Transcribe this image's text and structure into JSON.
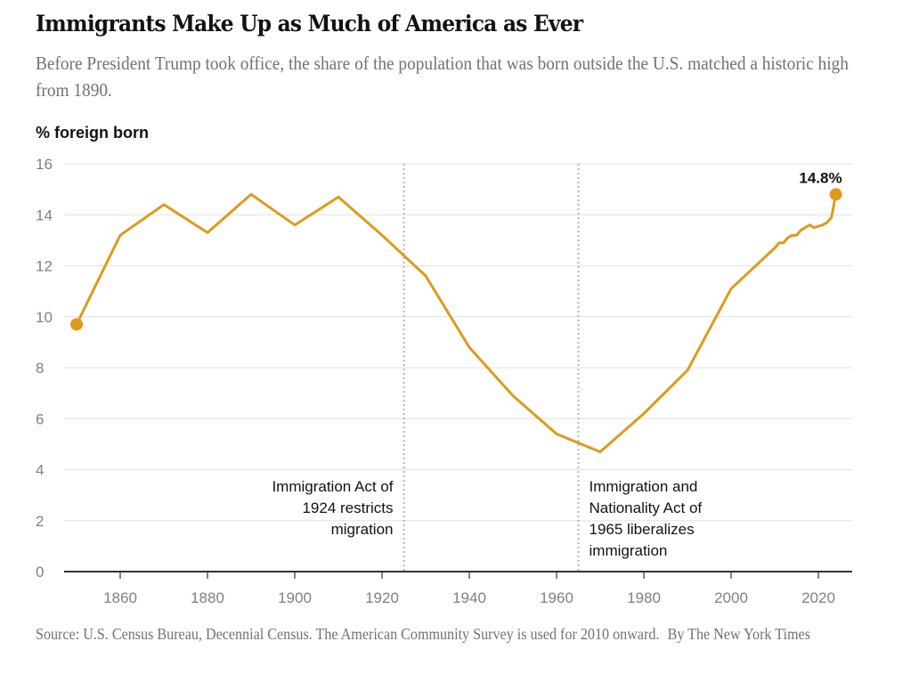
{
  "header": {
    "title": "Immigrants Make Up as Much of America as Ever",
    "subtitle": "Before President Trump took office, the share of the population that was born outside the U.S. matched a historic high from 1890."
  },
  "footer": {
    "source": "Source: U.S. Census Bureau, Decennial Census. The American Community Survey is used for 2010 onward.",
    "byline": "By The New York Times"
  },
  "colors": {
    "line": "#df9a1b",
    "grid": "#e6e6e6",
    "axis": "#333333",
    "annotation_line": "#b5b5b5"
  },
  "chart_data": {
    "type": "line",
    "title": "Immigrants Make Up as Much of America as Ever",
    "ylabel": "% foreign born",
    "xlabel": "",
    "ylim": [
      0,
      16
    ],
    "xlim": [
      1848,
      2027
    ],
    "yticks": [
      0,
      2,
      4,
      6,
      8,
      10,
      12,
      14,
      16
    ],
    "xticks": [
      1860,
      1880,
      1900,
      1920,
      1940,
      1960,
      1980,
      2000,
      2020
    ],
    "grid": true,
    "series": [
      {
        "name": "% foreign born",
        "x": [
          1850,
          1860,
          1870,
          1880,
          1890,
          1900,
          1910,
          1920,
          1930,
          1940,
          1950,
          1960,
          1970,
          1980,
          1990,
          2000,
          2010,
          2011,
          2012,
          2013,
          2014,
          2015,
          2016,
          2017,
          2018,
          2019,
          2021,
          2022,
          2023,
          2024
        ],
        "values": [
          9.7,
          13.2,
          14.4,
          13.3,
          14.8,
          13.6,
          14.7,
          13.2,
          11.6,
          8.8,
          6.9,
          5.4,
          4.7,
          6.2,
          7.9,
          11.1,
          12.7,
          12.9,
          12.9,
          13.1,
          13.2,
          13.2,
          13.4,
          13.5,
          13.6,
          13.5,
          13.6,
          13.7,
          13.9,
          14.8
        ]
      }
    ],
    "annotations": [
      {
        "x": 1925,
        "lines": [
          "Immigration Act of",
          "1924 restricts",
          "migration"
        ],
        "side": "left"
      },
      {
        "x": 1965,
        "lines": [
          "Immigration and",
          "Nationality Act of",
          "1965 liberalizes",
          "immigration"
        ],
        "side": "right"
      }
    ],
    "end_label": "14.8%"
  }
}
